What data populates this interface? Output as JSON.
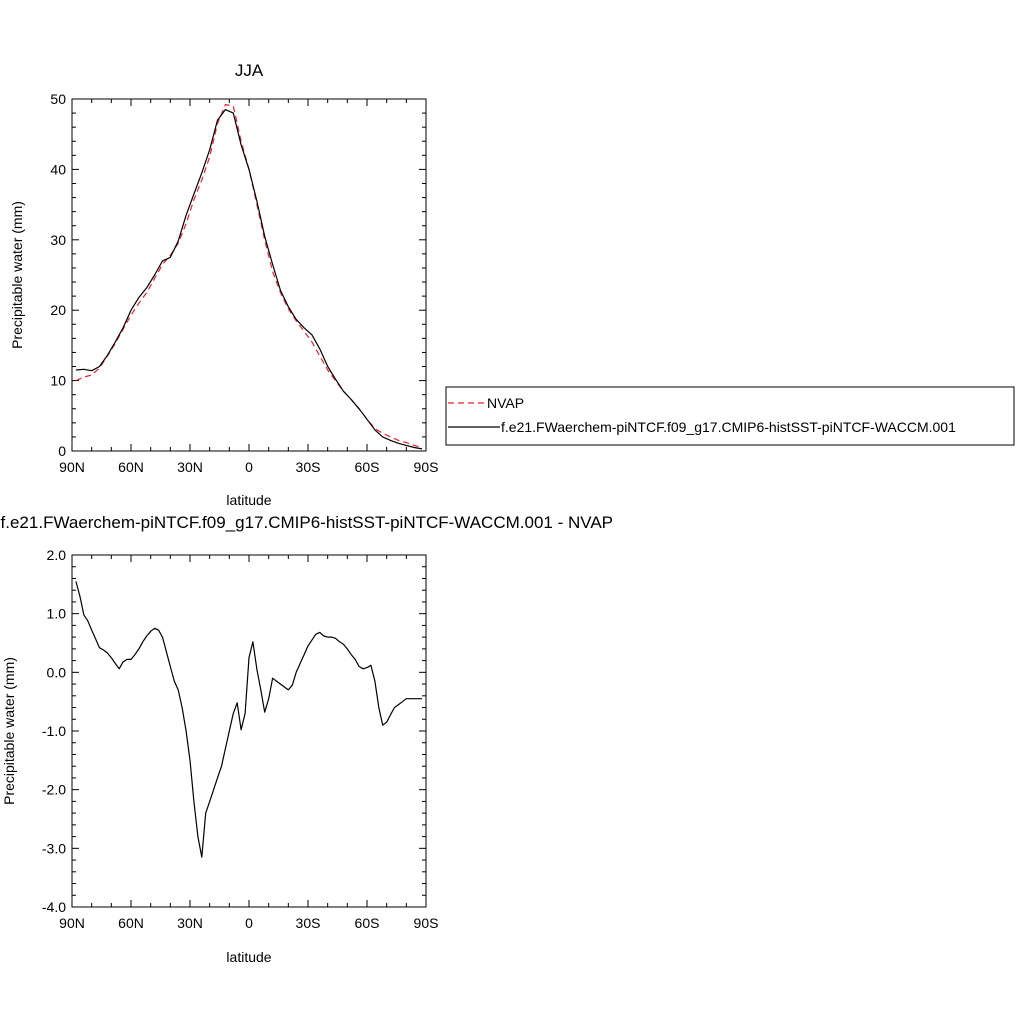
{
  "chart_data": [
    {
      "type": "line",
      "title": "JJA",
      "xlabel": "latitude",
      "ylabel": "Precipitable water (mm)",
      "xlim": [
        90,
        -90
      ],
      "ylim": [
        0,
        50
      ],
      "x_ticks": [
        90,
        60,
        30,
        0,
        -30,
        -60,
        -90
      ],
      "x_tick_labels": [
        "90N",
        "60N",
        "30N",
        "0",
        "30S",
        "60S",
        "90S"
      ],
      "y_ticks": [
        0,
        10,
        20,
        30,
        40,
        50
      ],
      "y_tick_labels": [
        "0",
        "10",
        "20",
        "30",
        "40",
        "50"
      ],
      "grid": false,
      "legend_position": "right",
      "series": [
        {
          "name": "NVAP",
          "color": "#e8232b",
          "dash": "dashed",
          "x": [
            88,
            84,
            80,
            76,
            72,
            68,
            64,
            60,
            56,
            52,
            48,
            44,
            40,
            36,
            32,
            28,
            24,
            20,
            16,
            12,
            8,
            4,
            0,
            -4,
            -8,
            -12,
            -16,
            -20,
            -24,
            -28,
            -32,
            -36,
            -40,
            -44,
            -48,
            -52,
            -56,
            -60,
            -64,
            -68,
            -72,
            -76,
            -80,
            -84,
            -88
          ],
          "y": [
            10.0,
            10.5,
            10.8,
            11.8,
            13.5,
            15.3,
            17.3,
            19.3,
            21.0,
            22.5,
            24.5,
            26.5,
            27.8,
            29.5,
            32.3,
            35.7,
            38.5,
            41.8,
            46.5,
            49.2,
            49.0,
            44.0,
            40.0,
            35.0,
            30.0,
            25.5,
            22.5,
            20.2,
            18.5,
            17.0,
            15.5,
            13.5,
            11.5,
            10.0,
            8.5,
            7.3,
            6.0,
            4.5,
            3.2,
            2.5,
            2.0,
            1.5,
            1.2,
            0.8,
            0.5
          ]
        },
        {
          "name": "f.e21.FWaerchem-piNTCF.f09_g17.CMIP6-histSST-piNTCF-WACCM.001",
          "color": "#000000",
          "dash": "solid",
          "x": [
            88,
            84,
            80,
            76,
            72,
            68,
            64,
            60,
            56,
            52,
            48,
            44,
            40,
            36,
            32,
            28,
            24,
            20,
            16,
            12,
            8,
            4,
            0,
            -4,
            -8,
            -12,
            -16,
            -20,
            -24,
            -28,
            -32,
            -36,
            -40,
            -44,
            -48,
            -52,
            -56,
            -60,
            -64,
            -68,
            -72,
            -76,
            -80,
            -84,
            -88
          ],
          "y": [
            11.5,
            11.6,
            11.4,
            12.0,
            13.6,
            15.5,
            17.5,
            20.0,
            21.8,
            23.2,
            25.0,
            27.0,
            27.5,
            29.8,
            33.5,
            36.5,
            39.5,
            42.8,
            47.0,
            48.5,
            48.0,
            43.5,
            40.0,
            35.5,
            30.5,
            26.5,
            22.8,
            20.5,
            18.7,
            17.5,
            16.5,
            14.5,
            12.0,
            10.2,
            8.5,
            7.3,
            6.0,
            4.5,
            3.0,
            2.0,
            1.5,
            1.1,
            0.8,
            0.5,
            0.3
          ]
        }
      ]
    },
    {
      "type": "line",
      "title": "f.e21.FWaerchem-piNTCF.f09_g17.CMIP6-histSST-piNTCF-WACCM.001 - NVAP",
      "xlabel": "latitude",
      "ylabel": "Precipitable water (mm)",
      "xlim": [
        90,
        -90
      ],
      "ylim": [
        -4.0,
        2.0
      ],
      "x_ticks": [
        90,
        60,
        30,
        0,
        -30,
        -60,
        -90
      ],
      "x_tick_labels": [
        "90N",
        "60N",
        "30N",
        "0",
        "30S",
        "60S",
        "90S"
      ],
      "y_ticks": [
        -4,
        -3,
        -2,
        -1,
        0,
        1,
        2
      ],
      "y_tick_labels": [
        "-4.0",
        "-3.0",
        "-2.0",
        "-1.0",
        "0.0",
        "1.0",
        "2.0"
      ],
      "grid": false,
      "series": [
        {
          "color": "#000000",
          "dash": "solid",
          "x": [
            88,
            86,
            84,
            82,
            80,
            76,
            74,
            72,
            70,
            68,
            66,
            64,
            62,
            60,
            58,
            56,
            54,
            52,
            50,
            48,
            46,
            44,
            42,
            40,
            38,
            36,
            34,
            32,
            30,
            28,
            26,
            24,
            22,
            20,
            18,
            16,
            14,
            12,
            10,
            8,
            6,
            4,
            2,
            0,
            -2,
            -4,
            -6,
            -8,
            -10,
            -12,
            -14,
            -16,
            -18,
            -20,
            -22,
            -24,
            -26,
            -28,
            -30,
            -32,
            -34,
            -36,
            -38,
            -40,
            -42,
            -44,
            -46,
            -48,
            -50,
            -52,
            -54,
            -56,
            -58,
            -60,
            -62,
            -64,
            -66,
            -68,
            -70,
            -72,
            -74,
            -76,
            -78,
            -80,
            -82,
            -84,
            -86,
            -88
          ],
          "y": [
            1.55,
            1.3,
            0.98,
            0.88,
            0.72,
            0.42,
            0.38,
            0.33,
            0.25,
            0.15,
            0.06,
            0.18,
            0.22,
            0.22,
            0.3,
            0.4,
            0.52,
            0.62,
            0.7,
            0.75,
            0.72,
            0.6,
            0.35,
            0.1,
            -0.15,
            -0.3,
            -0.6,
            -1.0,
            -1.5,
            -2.2,
            -2.8,
            -3.15,
            -2.4,
            -2.2,
            -2.0,
            -1.8,
            -1.6,
            -1.3,
            -1.0,
            -0.7,
            -0.52,
            -0.98,
            -0.7,
            0.25,
            0.52,
            0.05,
            -0.3,
            -0.68,
            -0.45,
            -0.1,
            -0.15,
            -0.2,
            -0.25,
            -0.3,
            -0.22,
            0.0,
            0.15,
            0.3,
            0.45,
            0.55,
            0.65,
            0.68,
            0.62,
            0.6,
            0.6,
            0.58,
            0.52,
            0.48,
            0.4,
            0.3,
            0.22,
            0.1,
            0.06,
            0.08,
            0.12,
            -0.15,
            -0.6,
            -0.9,
            -0.85,
            -0.72,
            -0.6,
            -0.55,
            -0.5,
            -0.45,
            -0.45,
            -0.45,
            -0.45,
            -0.45
          ]
        }
      ]
    }
  ]
}
